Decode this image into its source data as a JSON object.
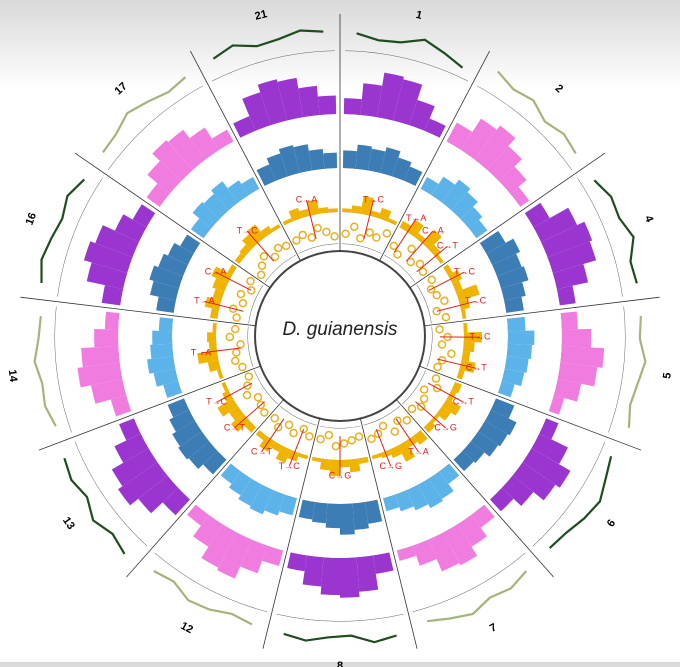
{
  "chart_data": {
    "type": "circos",
    "title": "D. guianensis",
    "tracks": {
      "line": {
        "ylim": [
          0,
          1
        ],
        "colors": [
          "#1f4d1f",
          "#a4b47a"
        ]
      },
      "hist": {
        "ylim": [
          0,
          1
        ],
        "colors": [
          "#9a35d0",
          "#f07ce0"
        ]
      },
      "blue": {
        "ylim": [
          0,
          1
        ],
        "colors": [
          "#3d7db5",
          "#5cb3ea"
        ]
      },
      "yellow": {
        "ylim": [
          0,
          1
        ],
        "colors": [
          "#f0b400",
          "#f0b400"
        ]
      },
      "dots": {
        "ylim": [
          0,
          1
        ],
        "colors": [
          "#e8b020",
          "#e8b020"
        ]
      }
    },
    "chromosomes": [
      {
        "name": "1",
        "line": [
          0.55,
          0.4,
          0.45,
          0.7,
          0.5,
          0.3
        ],
        "hist": [
          0.3,
          0.6,
          0.85,
          0.8,
          0.5,
          0.25
        ],
        "blue": [
          0.4,
          0.55,
          0.5,
          0.6,
          0.45,
          0.35
        ],
        "yellow": [
          0.1,
          0.2,
          0.5,
          0.15,
          0.3,
          0.1
        ],
        "dots": [
          0.4,
          0.7,
          0.3,
          0.6,
          0.5,
          0.8
        ],
        "mutations": [
          "T→C"
        ]
      },
      {
        "name": "2",
        "line": [
          0.7,
          0.5,
          0.6,
          0.35,
          0.5,
          0.4
        ],
        "hist": [
          0.4,
          0.7,
          0.8,
          0.6,
          0.4,
          0.2
        ],
        "blue": [
          0.3,
          0.5,
          0.65,
          0.55,
          0.4,
          0.3
        ],
        "yellow": [
          0.2,
          0.4,
          0.15,
          0.5,
          0.2,
          0.1
        ],
        "dots": [
          0.5,
          0.3,
          0.8,
          0.4,
          0.6,
          0.5
        ],
        "mutations": [
          "T→A",
          "C→A",
          "C→T"
        ]
      },
      {
        "name": "4",
        "line": [
          0.4,
          0.6,
          0.55,
          0.75,
          0.45,
          0.5
        ],
        "hist": [
          0.35,
          0.75,
          0.9,
          0.85,
          0.6,
          0.3
        ],
        "blue": [
          0.5,
          0.7,
          0.6,
          0.65,
          0.5,
          0.4
        ],
        "yellow": [
          0.15,
          0.3,
          0.2,
          0.6,
          0.25,
          0.1
        ],
        "dots": [
          0.6,
          0.4,
          0.5,
          0.7,
          0.3,
          0.6
        ],
        "mutations": [
          "T→C",
          "T→C"
        ]
      },
      {
        "name": "5",
        "line": [
          0.5,
          0.45,
          0.65,
          0.5,
          0.4,
          0.55
        ],
        "hist": [
          0.3,
          0.55,
          0.8,
          0.7,
          0.45,
          0.2
        ],
        "blue": [
          0.4,
          0.6,
          0.55,
          0.5,
          0.45,
          0.3
        ],
        "yellow": [
          0.1,
          0.5,
          0.3,
          0.2,
          0.4,
          0.15
        ],
        "dots": [
          0.3,
          0.6,
          0.4,
          0.8,
          0.5,
          0.4
        ],
        "mutations": [
          "T→C",
          "C→T"
        ]
      },
      {
        "name": "6",
        "line": [
          0.35,
          0.5,
          0.7,
          0.6,
          0.45,
          0.4
        ],
        "hist": [
          0.25,
          0.6,
          0.85,
          0.75,
          0.5,
          0.3
        ],
        "blue": [
          0.45,
          0.65,
          0.6,
          0.55,
          0.4,
          0.35
        ],
        "yellow": [
          0.2,
          0.15,
          0.45,
          0.3,
          0.1,
          0.2
        ],
        "dots": [
          0.5,
          0.7,
          0.3,
          0.5,
          0.6,
          0.4
        ],
        "mutations": [
          "C→T",
          "C→G"
        ]
      },
      {
        "name": "7",
        "line": [
          0.45,
          0.6,
          0.5,
          0.7,
          0.55,
          0.4
        ],
        "hist": [
          0.3,
          0.5,
          0.7,
          0.65,
          0.4,
          0.2
        ],
        "blue": [
          0.35,
          0.55,
          0.6,
          0.5,
          0.4,
          0.3
        ],
        "yellow": [
          0.3,
          0.2,
          0.5,
          0.25,
          0.15,
          0.1
        ],
        "dots": [
          0.6,
          0.4,
          0.7,
          0.3,
          0.5,
          0.6
        ],
        "mutations": [
          "T→A",
          "C→G"
        ]
      },
      {
        "name": "8",
        "line": [
          0.6,
          0.7,
          0.45,
          0.5,
          0.65,
          0.55
        ],
        "hist": [
          0.35,
          0.65,
          0.75,
          0.7,
          0.55,
          0.3
        ],
        "blue": [
          0.5,
          0.6,
          0.7,
          0.55,
          0.45,
          0.4
        ],
        "yellow": [
          0.15,
          0.35,
          0.2,
          0.45,
          0.3,
          0.1
        ],
        "dots": [
          0.4,
          0.5,
          0.6,
          0.7,
          0.3,
          0.5
        ],
        "mutations": [
          "C→G"
        ]
      },
      {
        "name": "12",
        "line": [
          0.5,
          0.4,
          0.55,
          0.6,
          0.35,
          0.45
        ],
        "hist": [
          0.3,
          0.55,
          0.8,
          0.75,
          0.5,
          0.25
        ],
        "blue": [
          0.4,
          0.5,
          0.6,
          0.55,
          0.45,
          0.35
        ],
        "yellow": [
          0.1,
          0.25,
          0.4,
          0.2,
          0.35,
          0.15
        ],
        "dots": [
          0.5,
          0.3,
          0.6,
          0.4,
          0.7,
          0.5
        ],
        "mutations": [
          "T→C",
          "C→T"
        ]
      },
      {
        "name": "13",
        "line": [
          0.65,
          0.5,
          0.7,
          0.45,
          0.6,
          0.5
        ],
        "hist": [
          0.4,
          0.7,
          0.9,
          0.8,
          0.55,
          0.3
        ],
        "blue": [
          0.45,
          0.6,
          0.65,
          0.6,
          0.5,
          0.4
        ],
        "yellow": [
          0.2,
          0.45,
          0.3,
          0.5,
          0.2,
          0.1
        ],
        "dots": [
          0.6,
          0.5,
          0.4,
          0.7,
          0.5,
          0.3
        ],
        "mutations": [
          "C→T",
          "T→C"
        ]
      },
      {
        "name": "14",
        "line": [
          0.4,
          0.55,
          0.5,
          0.65,
          0.5,
          0.45
        ],
        "hist": [
          0.3,
          0.6,
          0.8,
          0.7,
          0.45,
          0.25
        ],
        "blue": [
          0.35,
          0.5,
          0.6,
          0.5,
          0.45,
          0.3
        ],
        "yellow": [
          0.1,
          0.3,
          0.55,
          0.2,
          0.25,
          0.1
        ],
        "dots": [
          0.4,
          0.6,
          0.5,
          0.3,
          0.7,
          0.5
        ],
        "mutations": [
          "T→A"
        ]
      },
      {
        "name": "16",
        "line": [
          0.55,
          0.7,
          0.6,
          0.5,
          0.65,
          0.45
        ],
        "hist": [
          0.35,
          0.7,
          0.85,
          0.75,
          0.5,
          0.3
        ],
        "blue": [
          0.4,
          0.6,
          0.7,
          0.6,
          0.5,
          0.35
        ],
        "yellow": [
          0.2,
          0.4,
          0.25,
          0.35,
          0.5,
          0.15
        ],
        "dots": [
          0.5,
          0.7,
          0.4,
          0.6,
          0.3,
          0.5
        ],
        "mutations": [
          "T→A",
          "C→A"
        ]
      },
      {
        "name": "17",
        "line": [
          0.45,
          0.5,
          0.7,
          0.55,
          0.4,
          0.5
        ],
        "hist": [
          0.3,
          0.55,
          0.75,
          0.7,
          0.5,
          0.25
        ],
        "blue": [
          0.35,
          0.55,
          0.5,
          0.6,
          0.4,
          0.3
        ],
        "yellow": [
          0.15,
          0.2,
          0.35,
          0.45,
          0.2,
          0.1
        ],
        "dots": [
          0.3,
          0.5,
          0.7,
          0.4,
          0.6,
          0.5
        ],
        "mutations": [
          "T→C"
        ]
      },
      {
        "name": "21",
        "line": [
          0.6,
          0.75,
          0.5,
          0.55,
          0.7,
          0.6
        ],
        "hist": [
          0.3,
          0.65,
          0.8,
          0.75,
          0.55,
          0.35
        ],
        "blue": [
          0.4,
          0.55,
          0.65,
          0.6,
          0.45,
          0.35
        ],
        "yellow": [
          0.1,
          0.3,
          0.2,
          0.4,
          0.15,
          0.1
        ],
        "dots": [
          0.5,
          0.6,
          0.4,
          0.7,
          0.5,
          0.3
        ],
        "mutations": [
          "C→A"
        ]
      }
    ]
  }
}
